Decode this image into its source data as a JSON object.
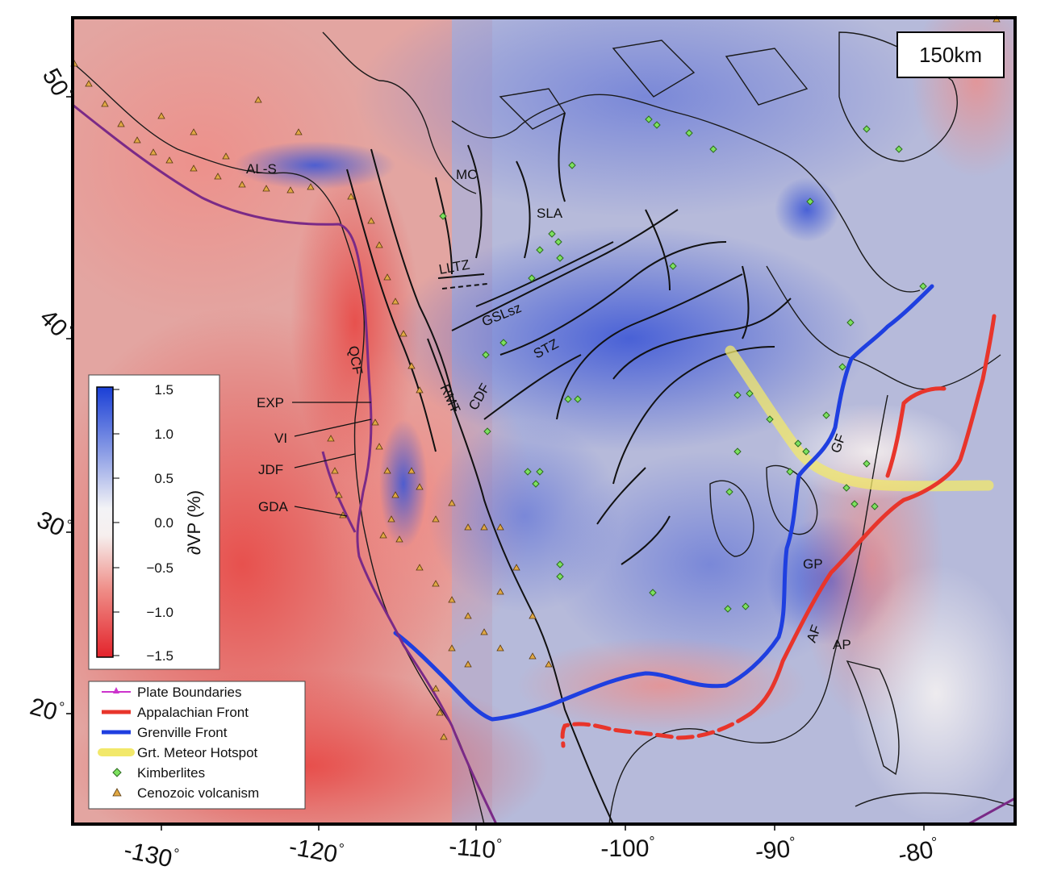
{
  "depth_label": "150km",
  "lon_labels": [
    "-130",
    "-120",
    "-110",
    "-100",
    "-90",
    "-80"
  ],
  "lat_labels": [
    "50",
    "40",
    "30",
    "20"
  ],
  "degree_symbol": "°",
  "colorbar": {
    "title": "∂VP (%)",
    "ticks": [
      "1.5",
      "1.0",
      "0.5",
      "0.0",
      "−0.5",
      "−1.0",
      "−1.5"
    ],
    "max_color": "#1a3fd6",
    "min_color": "#e3232b"
  },
  "legend": [
    {
      "label": "Plate Boundaries",
      "color": "#cc33cc",
      "symbol": "plate-boundary-icon"
    },
    {
      "label": "Appalachian Front",
      "color": "#e8352b",
      "symbol": "red-line-icon"
    },
    {
      "label": "Grenville Front",
      "color": "#1f3fe0",
      "symbol": "blue-line-icon"
    },
    {
      "label": "Grt. Meteor Hotspot",
      "color": "#f2e86a",
      "symbol": "yellow-line-icon"
    },
    {
      "label": "Kimberlites",
      "color": "#6ee05a",
      "symbol": "green-diamond-icon"
    },
    {
      "label": "Cenozoic volcanism",
      "color": "#e0a844",
      "symbol": "orange-triangle-icon"
    }
  ],
  "labels": {
    "als": "AL-S",
    "mc": "MC",
    "sla": "SLA",
    "lltz": "LLTZ",
    "gslsz": "GSLsz",
    "stz": "STZ",
    "qcf": "QCF",
    "rmt": "RMT",
    "cdf": "CDF",
    "exp": "EXP",
    "vi": "VI",
    "jdf": "JDF",
    "gda": "GDA",
    "gf": "GF",
    "gp": "GP",
    "af": "AF",
    "ap": "AP"
  }
}
